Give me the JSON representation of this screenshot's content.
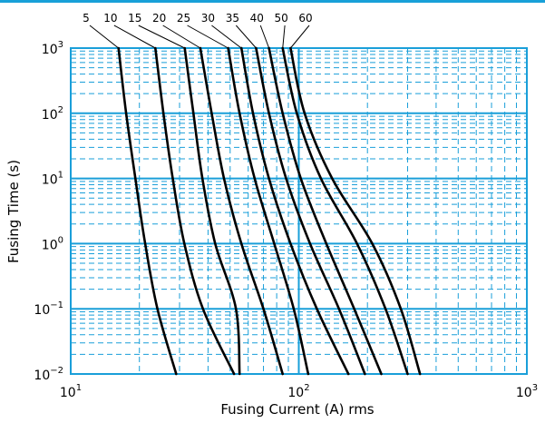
{
  "chart_data": {
    "type": "line",
    "title": "",
    "xlabel": "Fusing Current (A) rms",
    "ylabel": "Fusing Time (s)",
    "x_scale": "log",
    "y_scale": "log",
    "xlim": [
      10,
      1000
    ],
    "ylim": [
      0.01,
      1000
    ],
    "x_ticks": [
      {
        "base": "10",
        "exp": "1",
        "value": 10
      },
      {
        "base": "10",
        "exp": "2",
        "value": 100
      },
      {
        "base": "10",
        "exp": "3",
        "value": 1000
      }
    ],
    "y_ticks": [
      {
        "base": "10",
        "exp": "3",
        "value": 1000
      },
      {
        "base": "10",
        "exp": "2",
        "value": 100
      },
      {
        "base": "10",
        "exp": "1",
        "value": 10
      },
      {
        "base": "10",
        "exp": "0",
        "value": 1
      },
      {
        "base": "10",
        "exp": "−1",
        "value": 0.1
      },
      {
        "base": "10",
        "exp": "−2",
        "value": 0.01
      }
    ],
    "grid": true,
    "grid_color": "#1a9fd9",
    "line_color": "#000000",
    "series": [
      {
        "name": "5",
        "points": [
          [
            16.2,
            1000
          ],
          [
            17.5,
            100
          ],
          [
            19.2,
            10
          ],
          [
            21.2,
            1
          ],
          [
            24.0,
            0.1
          ],
          [
            29.0,
            0.01
          ]
        ]
      },
      {
        "name": "10",
        "points": [
          [
            23.5,
            1000
          ],
          [
            25.5,
            100
          ],
          [
            28.0,
            10
          ],
          [
            31.5,
            1
          ],
          [
            38.0,
            0.1
          ],
          [
            52.0,
            0.01
          ]
        ]
      },
      {
        "name": "15",
        "points": [
          [
            31.6,
            1000
          ],
          [
            34.5,
            100
          ],
          [
            37.8,
            10
          ],
          [
            43.0,
            1
          ],
          [
            53.0,
            0.1
          ],
          [
            55.0,
            0.01
          ]
        ]
      },
      {
        "name": "20",
        "points": [
          [
            37.0,
            1000
          ],
          [
            41.5,
            100
          ],
          [
            47.0,
            10
          ],
          [
            56.0,
            1
          ],
          [
            70.0,
            0.1
          ],
          [
            85.0,
            0.01
          ]
        ]
      },
      {
        "name": "25",
        "points": [
          [
            49.0,
            1000
          ],
          [
            55.0,
            100
          ],
          [
            64.0,
            10
          ],
          [
            78.0,
            1
          ],
          [
            95.0,
            0.1
          ],
          [
            110.0,
            0.01
          ]
        ]
      },
      {
        "name": "30",
        "points": [
          [
            56.0,
            1000
          ],
          [
            63.0,
            100
          ],
          [
            74.0,
            10
          ],
          [
            92.0,
            1
          ],
          [
            120.0,
            0.1
          ],
          [
            165.0,
            0.01
          ]
        ]
      },
      {
        "name": "35",
        "points": [
          [
            65.0,
            1000
          ],
          [
            74.0,
            100
          ],
          [
            88.0,
            10
          ],
          [
            112.0,
            1
          ],
          [
            150.0,
            0.1
          ],
          [
            195.0,
            0.01
          ]
        ]
      },
      {
        "name": "40",
        "points": [
          [
            74.0,
            1000
          ],
          [
            85.0,
            100
          ],
          [
            102.0,
            10
          ],
          [
            132.0,
            1
          ],
          [
            175.0,
            0.1
          ],
          [
            230.0,
            0.01
          ]
        ]
      },
      {
        "name": "50",
        "points": [
          [
            85.0,
            1000
          ],
          [
            98.0,
            100
          ],
          [
            125.0,
            10
          ],
          [
            180.0,
            1
          ],
          [
            240.0,
            0.1
          ],
          [
            300.0,
            0.01
          ]
        ]
      },
      {
        "name": "60",
        "points": [
          [
            92.0,
            1000
          ],
          [
            106.0,
            100
          ],
          [
            140.0,
            10
          ],
          [
            210.0,
            1
          ],
          [
            280.0,
            0.1
          ],
          [
            340.0,
            0.01
          ]
        ]
      }
    ]
  }
}
